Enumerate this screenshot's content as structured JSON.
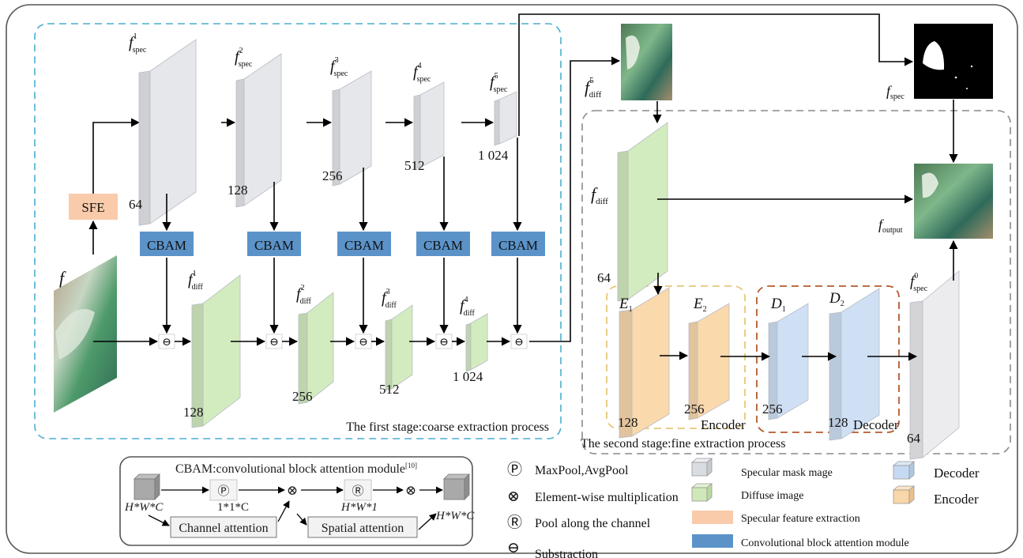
{
  "stage1": {
    "title": "The first stage:coarse extraction process",
    "input_symbol": "f",
    "sfe_label": "SFE",
    "spec_sub": "spec",
    "diff_sub": "diff",
    "spec_blocks": [
      {
        "sup": "1",
        "channels": "64"
      },
      {
        "sup": "2",
        "channels": "128"
      },
      {
        "sup": "3",
        "channels": "256"
      },
      {
        "sup": "4",
        "channels": "512"
      },
      {
        "sup": "5",
        "channels": "1 024"
      }
    ],
    "cbam_label": "CBAM",
    "diff_blocks": [
      {
        "sup": "1",
        "channels": "128"
      },
      {
        "sup": "2",
        "channels": "256"
      },
      {
        "sup": "3",
        "channels": "512"
      },
      {
        "sup": "4",
        "channels": "1 024"
      }
    ],
    "subtract_symbol": "⊖"
  },
  "stage2": {
    "title": "The second stage:fine extraction process",
    "fdiff5": {
      "sym": "f",
      "sup": "5",
      "sub": "diff"
    },
    "fdiff": {
      "sym": "f",
      "sub": "diff",
      "channels": "64"
    },
    "encoder": {
      "label": "Encoder",
      "blocks": [
        {
          "sym": "E",
          "sub": "1",
          "channels": "128"
        },
        {
          "sym": "E",
          "sub": "2",
          "channels": "256"
        }
      ]
    },
    "decoder": {
      "label": "Decoder",
      "blocks": [
        {
          "sym": "D",
          "sub": "1",
          "channels": "256"
        },
        {
          "sym": "D",
          "sub": "2",
          "channels": "128"
        }
      ]
    },
    "fspec0": {
      "sym": "f",
      "sup": "0",
      "sub": "spec",
      "channels": "64"
    },
    "fspec": {
      "sym": "f",
      "sub": "spec"
    },
    "foutput": {
      "sym": "f",
      "sub": "output"
    }
  },
  "cbam_module": {
    "title": "CBAM:convolutional block attention module",
    "ref": "[10]",
    "in_label": "H*W*C",
    "p_symbol": "Ⓟ",
    "p_dim": "1*1*C",
    "mult_symbol": "⊗",
    "r_symbol": "Ⓡ",
    "r_dim": "H*W*1",
    "out_label": "H*W*C",
    "channel_attention": "Channel attention",
    "spatial_attention": "Spatial attention"
  },
  "legend_ops": [
    {
      "symbol": "Ⓟ",
      "text": "MaxPool,AvgPool"
    },
    {
      "symbol": "⊗",
      "text": "Element-wise multiplication"
    },
    {
      "symbol": "Ⓡ",
      "text": "Pool along the channel"
    },
    {
      "symbol": "⊖",
      "text": "Substraction"
    }
  ],
  "legend_blocks": [
    {
      "text": "Specular mask mage",
      "color": "#d9dce1"
    },
    {
      "text": "Diffuse image",
      "color": "#cfe8b8"
    },
    {
      "text": "Specular feature extraction",
      "color": "#f9cbaa"
    },
    {
      "text": "Convolutional block attention module",
      "color": "#5b93c9"
    }
  ],
  "legend_ed": [
    {
      "text": "Decoder",
      "color": "#c6d9f2"
    },
    {
      "text": "Encoder",
      "color": "#f9d7a8"
    }
  ],
  "colors": {
    "spec": "#e6e7ea",
    "diff": "#d3ecbf",
    "encoder": "#fad9ad",
    "decoder": "#cfe0f5",
    "cbam": "#5b93c9",
    "sfe": "#f9cbaa",
    "stage1_border": "#4aaed0",
    "encoder_border": "#e8c777",
    "decoder_border": "#b5592e",
    "stage2_border": "#8a8a8a"
  }
}
